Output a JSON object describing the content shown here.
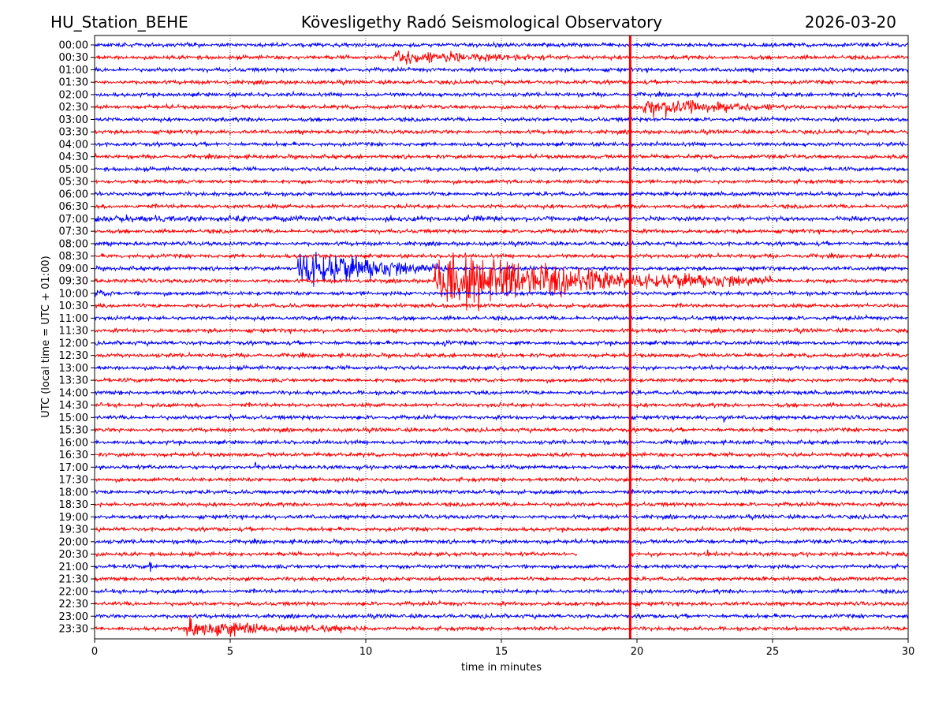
{
  "header": {
    "station": "HU_Station_BEHE",
    "title": "Kövesligethy Radó Seismological Observatory",
    "date": "2026-03-20"
  },
  "chart_data": {
    "type": "line",
    "subtype": "helicorder",
    "xlabel": "time in minutes",
    "ylabel": "UTC (local time = UTC + 01:00)",
    "xlim": [
      0,
      30
    ],
    "xticks": [
      "0",
      "5",
      "10",
      "15",
      "20",
      "25",
      "30"
    ],
    "x_grid": "dotted vertical at 5, 10, 15, 20, 25",
    "row_labels": [
      "00:00",
      "00:30",
      "01:00",
      "01:30",
      "02:00",
      "02:30",
      "03:00",
      "03:30",
      "04:00",
      "04:30",
      "05:00",
      "05:30",
      "06:00",
      "06:30",
      "07:00",
      "07:30",
      "08:00",
      "08:30",
      "09:00",
      "09:30",
      "10:00",
      "10:30",
      "11:00",
      "11:30",
      "12:00",
      "12:30",
      "13:00",
      "13:30",
      "14:00",
      "14:30",
      "15:00",
      "15:30",
      "16:00",
      "16:30",
      "17:00",
      "17:30",
      "18:00",
      "18:30",
      "19:00",
      "19:30",
      "20:00",
      "20:30",
      "21:00",
      "21:30",
      "22:00",
      "22:30",
      "23:00",
      "23:30"
    ],
    "row_colors": [
      "#0000ff",
      "#ff0000"
    ],
    "current_time_marker": {
      "minute": 19.75,
      "color": "#ff0000"
    },
    "events": [
      {
        "row": "00:30",
        "start_min": 11.0,
        "end_min": 17.5,
        "relative_amplitude": 7
      },
      {
        "row": "02:30",
        "start_min": 20.2,
        "end_min": 25.5,
        "relative_amplitude": 11
      },
      {
        "row": "07:00",
        "start_min": 0,
        "end_min": 30,
        "relative_amplitude": 1.5
      },
      {
        "row": "09:00",
        "start_min": 7.5,
        "end_min": 13.0,
        "relative_amplitude": 25
      },
      {
        "row": "09:30",
        "start_min": 12.5,
        "end_min": 25.0,
        "relative_amplitude": 30
      },
      {
        "row": "10:00",
        "start_min": 0,
        "end_min": 2.0,
        "relative_amplitude": 3
      },
      {
        "row": "12:00",
        "start_min": 12.9,
        "end_min": 13.3,
        "relative_amplitude": 6
      },
      {
        "row": "15:00",
        "start_min": 5.0,
        "end_min": 5.2,
        "relative_amplitude": 6
      },
      {
        "row": "15:00",
        "start_min": 23.2,
        "end_min": 23.4,
        "relative_amplitude": 6
      },
      {
        "row": "17:00",
        "start_min": 5.9,
        "end_min": 6.4,
        "relative_amplitude": 5
      },
      {
        "row": "20:30",
        "start_min": 22.6,
        "end_min": 22.7,
        "relative_amplitude": 12
      },
      {
        "row": "21:00",
        "start_min": 2.0,
        "end_min": 2.2,
        "relative_amplitude": 30
      },
      {
        "row": "23:30",
        "start_min": 3.4,
        "end_min": 10.0,
        "relative_amplitude": 10
      }
    ],
    "gaps": [
      {
        "row": "20:30",
        "start_min": 17.8,
        "end_min": 19.75
      }
    ],
    "data_end": {
      "row": "23:30",
      "minute": 30
    }
  }
}
